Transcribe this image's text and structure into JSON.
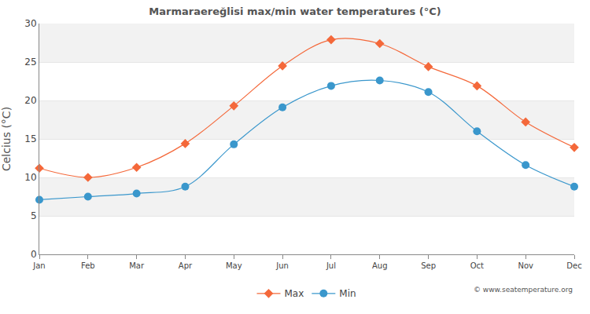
{
  "chart_data": {
    "type": "line",
    "title": "Marmaraereğlisi max/min water temperatures (°C)",
    "y_label": "Celcius (°C)",
    "categories": [
      "Jan",
      "Feb",
      "Mar",
      "Apr",
      "May",
      "Jun",
      "Jul",
      "Aug",
      "Sep",
      "Oct",
      "Nov",
      "Dec"
    ],
    "series": [
      {
        "name": "Max",
        "color": "#f4683a",
        "marker": "diamond",
        "values": [
          11.2,
          10.0,
          11.3,
          14.4,
          19.3,
          24.5,
          27.9,
          27.4,
          24.4,
          21.9,
          17.2,
          13.9
        ]
      },
      {
        "name": "Min",
        "color": "#3a97cc",
        "marker": "circle",
        "values": [
          7.1,
          7.5,
          7.9,
          8.8,
          14.3,
          19.1,
          21.9,
          22.6,
          21.1,
          16.0,
          11.6,
          8.8
        ]
      }
    ],
    "ylim": [
      0,
      30
    ],
    "yticks": [
      0,
      5,
      10,
      15,
      20,
      25,
      30
    ],
    "grid": true,
    "legend": "bottom",
    "annotations": [
      "© www.seatemperature.org"
    ]
  }
}
